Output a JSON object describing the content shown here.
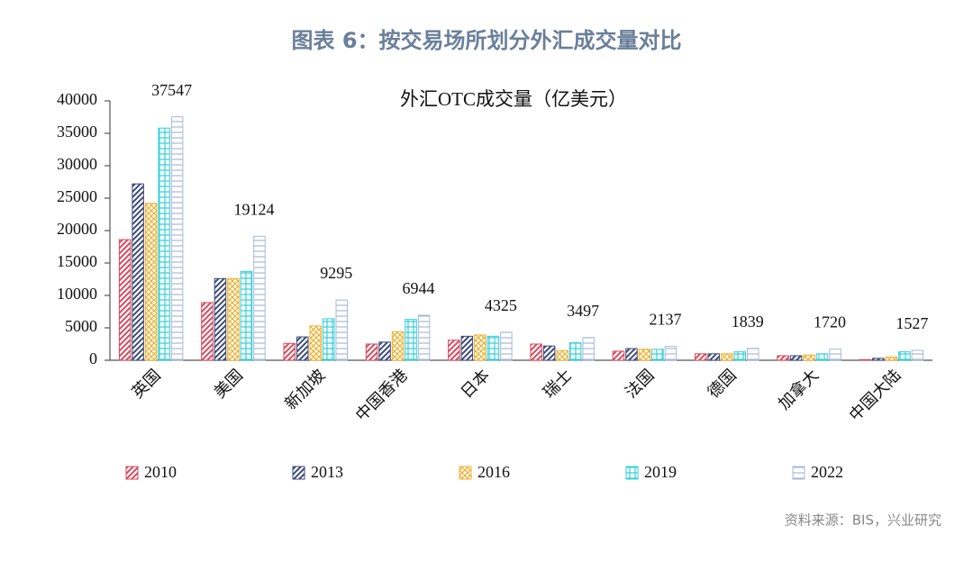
{
  "chart_data": {
    "type": "bar",
    "title": "图表 6：按交易场所划分外汇成交量对比",
    "subtitle": "外汇OTC成交量（亿美元）",
    "source": "资料来源：BIS，兴业研究",
    "categories": [
      "英国",
      "美国",
      "新加坡",
      "中国香港",
      "日本",
      "瑞士",
      "法国",
      "德国",
      "加拿大",
      "中国大陆"
    ],
    "series": [
      {
        "name": "2010",
        "color": "#d8495c",
        "pattern": "diagonal",
        "values": [
          18600,
          8900,
          2600,
          2500,
          3100,
          2500,
          1400,
          1000,
          700,
          100
        ]
      },
      {
        "name": "2013",
        "color": "#3c4a7a",
        "pattern": "diagonal",
        "values": [
          27200,
          12600,
          3600,
          2800,
          3700,
          2200,
          1800,
          1000,
          700,
          300
        ]
      },
      {
        "name": "2016",
        "color": "#f0b030",
        "pattern": "cross",
        "values": [
          24200,
          12600,
          5300,
          4400,
          3900,
          1500,
          1700,
          1000,
          800,
          500
        ]
      },
      {
        "name": "2019",
        "color": "#35d0d8",
        "pattern": "grid",
        "values": [
          35800,
          13700,
          6400,
          6300,
          3700,
          2700,
          1700,
          1300,
          1000,
          1300
        ]
      },
      {
        "name": "2022",
        "color": "#a8b8d8",
        "pattern": "horizontal",
        "values": [
          37547,
          19124,
          9295,
          6944,
          4325,
          3497,
          2137,
          1839,
          1720,
          1527
        ]
      }
    ],
    "ylim": [
      0,
      40000
    ],
    "yticks": [
      0,
      5000,
      10000,
      15000,
      20000,
      25000,
      30000,
      35000,
      40000
    ],
    "grid": false
  }
}
